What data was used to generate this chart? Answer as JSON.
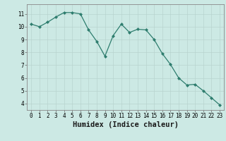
{
  "x": [
    0,
    1,
    2,
    3,
    4,
    5,
    6,
    7,
    8,
    9,
    10,
    11,
    12,
    13,
    14,
    15,
    16,
    17,
    18,
    19,
    20,
    21,
    22,
    23
  ],
  "y": [
    10.2,
    10.0,
    10.35,
    10.75,
    11.1,
    11.1,
    11.0,
    9.75,
    8.85,
    7.7,
    9.3,
    10.2,
    9.55,
    9.8,
    9.75,
    9.0,
    7.9,
    7.05,
    6.0,
    5.45,
    5.5,
    5.0,
    4.45,
    3.9
  ],
  "line_color": "#2e7d6e",
  "marker": "D",
  "marker_size": 2.0,
  "bg_color": "#cce9e4",
  "grid_color": "#b8d4cf",
  "xlabel": "Humidex (Indice chaleur)",
  "xlim": [
    -0.5,
    23.5
  ],
  "ylim": [
    3.5,
    11.75
  ],
  "yticks": [
    4,
    5,
    6,
    7,
    8,
    9,
    10,
    11
  ],
  "xticks": [
    0,
    1,
    2,
    3,
    4,
    5,
    6,
    7,
    8,
    9,
    10,
    11,
    12,
    13,
    14,
    15,
    16,
    17,
    18,
    19,
    20,
    21,
    22,
    23
  ],
  "tick_fontsize": 5.5,
  "xlabel_fontsize": 7.5,
  "xlabel_fontweight": "bold"
}
